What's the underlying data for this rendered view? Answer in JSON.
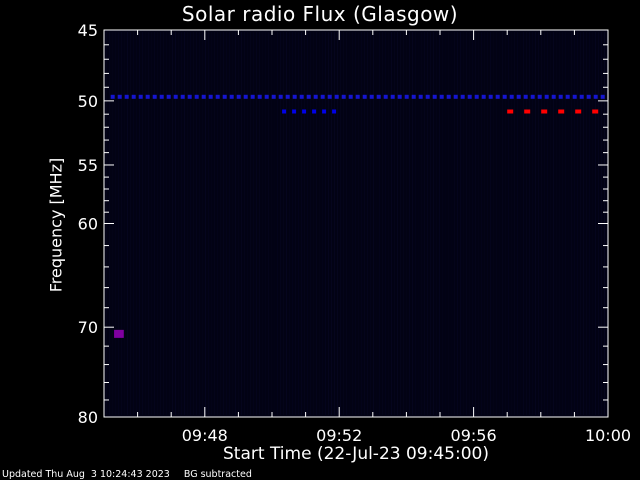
{
  "chart_data": {
    "type": "heatmap",
    "title": "Solar radio Flux (Glasgow)",
    "xlabel": "Start Time (22-Jul-23 09:45:00)",
    "ylabel": "Frequency [MHz]",
    "x_range": [
      "09:45",
      "10:00"
    ],
    "y_range": [
      45,
      80
    ],
    "y_scale": "reversed-log",
    "x_tick_labels": [
      "09:48",
      "09:52",
      "09:56",
      "10:00"
    ],
    "x_tick_values_min": [
      3,
      7,
      11,
      15
    ],
    "y_tick_labels": [
      "45",
      "50",
      "55",
      "60",
      "70",
      "80"
    ],
    "y_tick_values": [
      45,
      50,
      55,
      60,
      70,
      80
    ],
    "features": [
      {
        "desc": "periodic emission line",
        "freq_mhz": 49.7,
        "t_start_min": 0.2,
        "t_end_min": 14.9,
        "color": "#1a1aff",
        "intensity": 0.8
      },
      {
        "desc": "dashed emission",
        "freq_mhz": 50.8,
        "t_start_min": 5.3,
        "t_end_min": 7.0,
        "color": "#0000ff",
        "intensity": 0.9
      },
      {
        "desc": "dashed emission",
        "freq_mhz": 50.8,
        "t_start_min": 12.0,
        "t_end_min": 14.9,
        "color": "#ff0000",
        "intensity": 1.0
      },
      {
        "desc": "isolated blob",
        "freq_mhz": 70.7,
        "t_start_min": 0.3,
        "t_end_min": 0.5,
        "color": "#8000a0",
        "intensity": 0.9
      }
    ],
    "background_color": "#020214",
    "grid": false
  },
  "footer": {
    "updated": "Updated Thu Aug  3 10:24:43 2023",
    "note": "BG subtracted"
  }
}
